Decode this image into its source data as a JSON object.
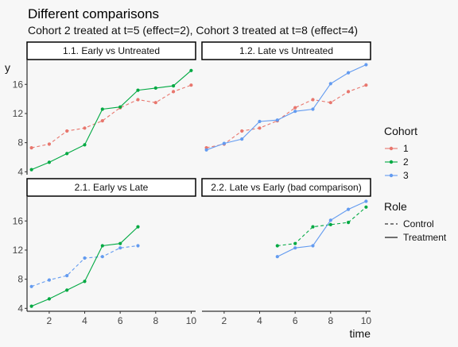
{
  "chart_data": {
    "type": "line",
    "title": "Different comparisons",
    "subtitle": "Cohort 2 treated at t=5 (effect=2), Cohort 3 treated at t=8 (effect=4)",
    "xlabel": "time",
    "ylabel": "y",
    "xlim": [
      0.75,
      10.25
    ],
    "ylim": [
      3.6,
      19.3
    ],
    "x_ticks": [
      "2",
      "4",
      "6",
      "8",
      "10"
    ],
    "y_ticks": [
      "4",
      "8",
      "12",
      "16"
    ],
    "grid": false,
    "legend_position": "right",
    "colors": {
      "1": "#E8766D",
      "2": "#00A942",
      "3": "#639BF0"
    },
    "legends": [
      {
        "title": "Cohort",
        "entries": [
          "1",
          "2",
          "3"
        ]
      },
      {
        "title": "Role",
        "entries": [
          "Control",
          "Treatment"
        ]
      }
    ],
    "panels": [
      {
        "label": "1.1. Early vs Untreated",
        "series": [
          {
            "cohort": "1",
            "role": "Control",
            "x": [
              1,
              2,
              3,
              4,
              5,
              6,
              7,
              8,
              9,
              10
            ],
            "y": [
              7.3,
              7.8,
              9.6,
              10.0,
              11.0,
              12.8,
              13.9,
              13.5,
              15.0,
              15.9
            ]
          },
          {
            "cohort": "2",
            "role": "Treatment",
            "x": [
              1,
              2,
              3,
              4,
              5,
              6,
              7,
              8,
              9,
              10
            ],
            "y": [
              4.3,
              5.3,
              6.5,
              7.7,
              12.6,
              12.9,
              15.2,
              15.5,
              15.8,
              17.9
            ]
          }
        ]
      },
      {
        "label": "1.2. Late vs Untreated",
        "series": [
          {
            "cohort": "1",
            "role": "Control",
            "x": [
              1,
              2,
              3,
              4,
              5,
              6,
              7,
              8,
              9,
              10
            ],
            "y": [
              7.3,
              7.8,
              9.6,
              10.0,
              11.0,
              12.8,
              13.9,
              13.5,
              15.0,
              15.9
            ]
          },
          {
            "cohort": "3",
            "role": "Treatment",
            "x": [
              1,
              2,
              3,
              4,
              5,
              6,
              7,
              8,
              9,
              10
            ],
            "y": [
              7.0,
              7.9,
              8.5,
              10.9,
              11.1,
              12.3,
              12.6,
              16.1,
              17.6,
              18.7
            ]
          }
        ]
      },
      {
        "label": "2.1. Early vs Late",
        "series": [
          {
            "cohort": "3",
            "role": "Control",
            "x": [
              1,
              2,
              3,
              4,
              5,
              6,
              7
            ],
            "y": [
              7.0,
              7.9,
              8.5,
              10.9,
              11.1,
              12.3,
              12.6
            ]
          },
          {
            "cohort": "2",
            "role": "Treatment",
            "x": [
              1,
              2,
              3,
              4,
              5,
              6,
              7
            ],
            "y": [
              4.3,
              5.3,
              6.5,
              7.7,
              12.6,
              12.9,
              15.2
            ]
          }
        ]
      },
      {
        "label": "2.2. Late vs Early (bad comparison)",
        "series": [
          {
            "cohort": "2",
            "role": "Control",
            "x": [
              5,
              6,
              7,
              8,
              9,
              10
            ],
            "y": [
              12.6,
              12.9,
              15.2,
              15.5,
              15.8,
              17.9
            ]
          },
          {
            "cohort": "3",
            "role": "Treatment",
            "x": [
              5,
              6,
              7,
              8,
              9,
              10
            ],
            "y": [
              11.1,
              12.3,
              12.6,
              16.1,
              17.6,
              18.7
            ]
          }
        ]
      }
    ]
  }
}
